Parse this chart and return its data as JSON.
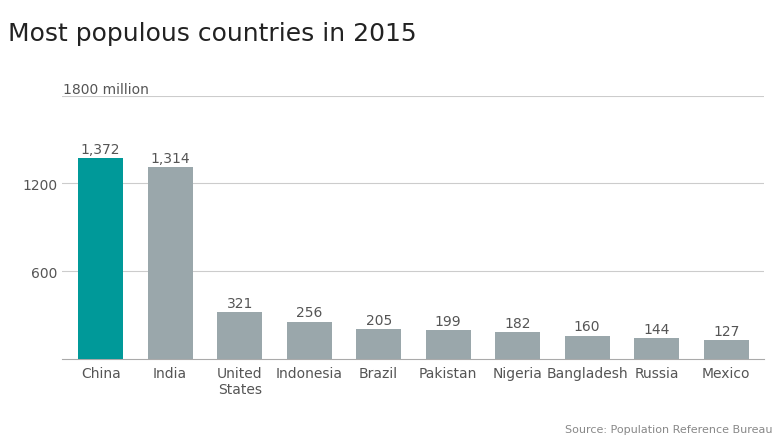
{
  "title": "Most populous countries in 2015",
  "unit_label": "1800 million",
  "source": "Source: Population Reference Bureau",
  "categories": [
    "China",
    "India",
    "United\nStates",
    "Indonesia",
    "Brazil",
    "Pakistan",
    "Nigeria",
    "Bangladesh",
    "Russia",
    "Mexico"
  ],
  "values": [
    1372,
    1314,
    321,
    256,
    205,
    199,
    182,
    160,
    144,
    127
  ],
  "bar_colors": [
    "#009999",
    "#9aa7ab",
    "#9aa7ab",
    "#9aa7ab",
    "#9aa7ab",
    "#9aa7ab",
    "#9aa7ab",
    "#9aa7ab",
    "#9aa7ab",
    "#9aa7ab"
  ],
  "ylim": [
    0,
    1800
  ],
  "ytick_vals": [
    600,
    1200
  ],
  "background_color": "#ffffff",
  "grid_color": "#cccccc",
  "title_fontsize": 18,
  "label_fontsize": 10,
  "bar_label_fontsize": 10,
  "tick_fontsize": 10,
  "source_fontsize": 8,
  "unit_fontsize": 10,
  "text_color": "#555555",
  "title_color": "#222222"
}
